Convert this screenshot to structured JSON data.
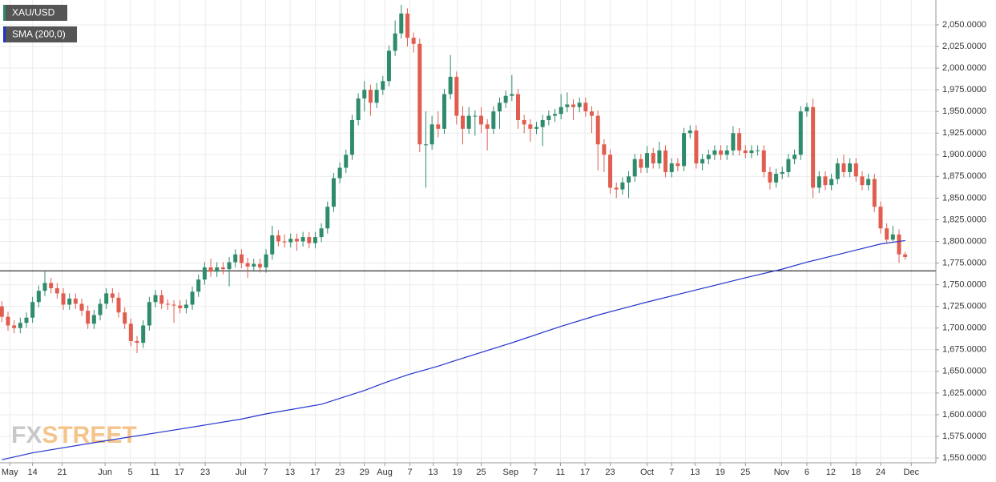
{
  "chart_data": {
    "type": "candlestick",
    "xlim": [
      -0.3,
      152
    ],
    "ylim": [
      1544.5,
      2078.6
    ],
    "grid": true,
    "logo": [
      "FX",
      "STREET"
    ],
    "hline": {
      "value": 1766,
      "color": "#000000"
    },
    "xticks": [
      {
        "value": 1.3,
        "label": "May"
      },
      {
        "value": 5,
        "label": "14"
      },
      {
        "value": 9.8,
        "label": "21"
      },
      {
        "value": 16.8,
        "label": "Jun"
      },
      {
        "value": 20.9,
        "label": "5"
      },
      {
        "value": 24.9,
        "label": "11"
      },
      {
        "value": 28.9,
        "label": "17"
      },
      {
        "value": 33.1,
        "label": "23"
      },
      {
        "value": 38.9,
        "label": "Jul"
      },
      {
        "value": 42.9,
        "label": "7"
      },
      {
        "value": 46.9,
        "label": "13"
      },
      {
        "value": 51,
        "label": "17"
      },
      {
        "value": 55,
        "label": "23"
      },
      {
        "value": 59,
        "label": "29"
      },
      {
        "value": 62.3,
        "label": "Aug"
      },
      {
        "value": 66.4,
        "label": "7"
      },
      {
        "value": 70.2,
        "label": "13"
      },
      {
        "value": 74.1,
        "label": "19"
      },
      {
        "value": 78,
        "label": "25"
      },
      {
        "value": 82.8,
        "label": "Sep"
      },
      {
        "value": 86.8,
        "label": "7"
      },
      {
        "value": 90.9,
        "label": "11"
      },
      {
        "value": 94.9,
        "label": "17"
      },
      {
        "value": 99,
        "label": "23"
      },
      {
        "value": 105,
        "label": "Oct"
      },
      {
        "value": 109,
        "label": "7"
      },
      {
        "value": 112.8,
        "label": "13"
      },
      {
        "value": 116.9,
        "label": "19"
      },
      {
        "value": 121,
        "label": "25"
      },
      {
        "value": 126.9,
        "label": "Nov"
      },
      {
        "value": 131,
        "label": "6"
      },
      {
        "value": 134.9,
        "label": "12"
      },
      {
        "value": 139,
        "label": "18"
      },
      {
        "value": 143,
        "label": "24"
      },
      {
        "value": 148,
        "label": "Dec"
      }
    ],
    "yticks": [
      {
        "value": 1550,
        "label": "1,550.0000"
      },
      {
        "value": 1575,
        "label": "1,575.0000"
      },
      {
        "value": 1600,
        "label": "1,600.0000"
      },
      {
        "value": 1625,
        "label": "1,625.0000"
      },
      {
        "value": 1650,
        "label": "1,650.0000"
      },
      {
        "value": 1675,
        "label": "1,675.0000"
      },
      {
        "value": 1700,
        "label": "1,700.0000"
      },
      {
        "value": 1725,
        "label": "1,725.0000"
      },
      {
        "value": 1750,
        "label": "1,750.0000"
      },
      {
        "value": 1775,
        "label": "1,775.0000"
      },
      {
        "value": 1800,
        "label": "1,800.0000"
      },
      {
        "value": 1825,
        "label": "1,825.0000"
      },
      {
        "value": 1850,
        "label": "1,850.0000"
      },
      {
        "value": 1875,
        "label": "1,875.0000"
      },
      {
        "value": 1900,
        "label": "1,900.0000"
      },
      {
        "value": 1925,
        "label": "1,925.0000"
      },
      {
        "value": 1950,
        "label": "1,950.0000"
      },
      {
        "value": 1975,
        "label": "1,975.0000"
      },
      {
        "value": 2000,
        "label": "2,000.0000"
      },
      {
        "value": 2025,
        "label": "2,025.0000"
      },
      {
        "value": 2050,
        "label": "2,050.0000"
      }
    ],
    "series": [
      {
        "name": "XAU/USD",
        "color": "#2e8b6b",
        "up_color": "#2e8b6b",
        "down_color": "#e05d4f",
        "x": [
          0,
          1,
          2,
          3,
          4,
          5,
          6,
          7,
          8,
          9,
          10,
          11,
          12,
          13,
          14,
          15,
          16,
          17,
          18,
          19,
          20,
          21,
          22,
          23,
          24,
          25,
          26,
          27,
          28,
          29,
          30,
          31,
          32,
          33,
          34,
          35,
          36,
          37,
          38,
          39,
          40,
          41,
          42,
          43,
          44,
          45,
          46,
          47,
          48,
          49,
          50,
          51,
          52,
          53,
          54,
          55,
          56,
          57,
          58,
          59,
          60,
          61,
          62,
          63,
          64,
          65,
          66,
          67,
          68,
          69,
          70,
          71,
          72,
          73,
          74,
          75,
          76,
          77,
          78,
          79,
          80,
          81,
          82,
          83,
          84,
          85,
          86,
          87,
          88,
          89,
          90,
          91,
          92,
          93,
          94,
          95,
          96,
          97,
          98,
          99,
          100,
          101,
          102,
          103,
          104,
          105,
          106,
          107,
          108,
          109,
          110,
          111,
          112,
          113,
          114,
          115,
          116,
          117,
          118,
          119,
          120,
          121,
          122,
          123,
          124,
          125,
          126,
          127,
          128,
          129,
          130,
          131,
          132,
          133,
          134,
          135,
          136,
          137,
          138,
          139,
          140,
          141,
          142,
          143,
          144,
          145,
          146,
          147
        ],
        "open": [
          1725,
          1713,
          1703,
          1700,
          1706,
          1712,
          1730,
          1743,
          1752,
          1746,
          1740,
          1727,
          1734,
          1728,
          1720,
          1705,
          1715,
          1728,
          1740,
          1735,
          1718,
          1705,
          1685,
          1683,
          1703,
          1730,
          1738,
          1728,
          1727,
          1726,
          1723,
          1727,
          1742,
          1756,
          1770,
          1765,
          1770,
          1768,
          1776,
          1785,
          1775,
          1771,
          1774,
          1770,
          1785,
          1807,
          1800,
          1799,
          1803,
          1800,
          1805,
          1798,
          1805,
          1815,
          1840,
          1873,
          1885,
          1900,
          1940,
          1965,
          1975,
          1960,
          1975,
          1985,
          2020,
          2040,
          2063,
          2035,
          2028,
          1912,
          1912,
          1935,
          1930,
          1970,
          1990,
          1945,
          1930,
          1945,
          1945,
          1935,
          1930,
          1950,
          1960,
          1968,
          1970,
          1940,
          1935,
          1930,
          1932,
          1940,
          1945,
          1947,
          1955,
          1958,
          1955,
          1960,
          1950,
          1945,
          1912,
          1900,
          1862,
          1860,
          1868,
          1875,
          1895,
          1885,
          1902,
          1890,
          1905,
          1880,
          1890,
          1887,
          1925,
          1928,
          1890,
          1895,
          1900,
          1905,
          1900,
          1905,
          1925,
          1905,
          1902,
          1905,
          1905,
          1880,
          1868,
          1878,
          1880,
          1895,
          1900,
          1950,
          1955,
          1862,
          1875,
          1865,
          1872,
          1890,
          1880,
          1890,
          1875,
          1865,
          1872,
          1840,
          1815,
          1802,
          1808,
          1785
        ],
        "high": [
          1731,
          1719,
          1709,
          1712,
          1718,
          1736,
          1749,
          1765,
          1758,
          1752,
          1746,
          1740,
          1740,
          1734,
          1726,
          1721,
          1734,
          1746,
          1746,
          1741,
          1724,
          1711,
          1691,
          1709,
          1736,
          1744,
          1744,
          1733,
          1732,
          1732,
          1733,
          1748,
          1762,
          1776,
          1780,
          1776,
          1776,
          1782,
          1791,
          1791,
          1781,
          1780,
          1780,
          1791,
          1818,
          1813,
          1808,
          1809,
          1809,
          1811,
          1811,
          1811,
          1821,
          1846,
          1879,
          1891,
          1906,
          1946,
          1971,
          1985,
          1981,
          1983,
          1991,
          2026,
          2055,
          2073,
          2069,
          2041,
          2034,
          1950,
          1945,
          1950,
          1976,
          2015,
          1996,
          1956,
          1955,
          1951,
          1955,
          1941,
          1956,
          1966,
          1974,
          1992,
          1976,
          1946,
          1941,
          1938,
          1946,
          1951,
          1953,
          1970,
          1972,
          1964,
          1966,
          1966,
          1956,
          1951,
          1918,
          1906,
          1868,
          1874,
          1881,
          1901,
          1901,
          1910,
          1908,
          1915,
          1911,
          1896,
          1896,
          1931,
          1934,
          1934,
          1901,
          1906,
          1911,
          1911,
          1911,
          1933,
          1931,
          1911,
          1911,
          1911,
          1911,
          1886,
          1884,
          1886,
          1901,
          1906,
          1956,
          1960,
          1965,
          1881,
          1881,
          1878,
          1896,
          1900,
          1896,
          1896,
          1881,
          1878,
          1878,
          1846,
          1821,
          1818,
          1814,
          1788
        ],
        "low": [
          1707,
          1697,
          1694,
          1694,
          1700,
          1706,
          1724,
          1737,
          1740,
          1734,
          1721,
          1721,
          1722,
          1714,
          1699,
          1699,
          1709,
          1722,
          1729,
          1712,
          1699,
          1679,
          1671,
          1677,
          1697,
          1724,
          1722,
          1721,
          1706,
          1717,
          1717,
          1721,
          1736,
          1750,
          1759,
          1759,
          1762,
          1748,
          1770,
          1769,
          1758,
          1765,
          1764,
          1764,
          1779,
          1794,
          1793,
          1793,
          1789,
          1794,
          1792,
          1792,
          1799,
          1809,
          1834,
          1867,
          1879,
          1894,
          1934,
          1950,
          1945,
          1954,
          1969,
          1979,
          2014,
          2034,
          2025,
          2018,
          1903,
          1862,
          1906,
          1920,
          1924,
          1964,
          1935,
          1912,
          1924,
          1922,
          1925,
          1905,
          1924,
          1930,
          1954,
          1962,
          1930,
          1925,
          1915,
          1924,
          1910,
          1934,
          1938,
          1941,
          1949,
          1940,
          1949,
          1944,
          1925,
          1882,
          1880,
          1855,
          1850,
          1854,
          1850,
          1869,
          1879,
          1879,
          1884,
          1884,
          1874,
          1874,
          1881,
          1881,
          1919,
          1884,
          1882,
          1889,
          1894,
          1894,
          1894,
          1899,
          1899,
          1896,
          1896,
          1899,
          1874,
          1860,
          1862,
          1872,
          1874,
          1889,
          1894,
          1944,
          1850,
          1856,
          1859,
          1859,
          1866,
          1874,
          1874,
          1869,
          1859,
          1859,
          1834,
          1809,
          1798,
          1800,
          1775,
          1779
        ],
        "close": [
          1713,
          1703,
          1700,
          1706,
          1712,
          1730,
          1743,
          1752,
          1746,
          1740,
          1727,
          1734,
          1728,
          1720,
          1705,
          1715,
          1728,
          1740,
          1735,
          1718,
          1705,
          1685,
          1683,
          1703,
          1730,
          1738,
          1728,
          1727,
          1726,
          1723,
          1727,
          1742,
          1756,
          1770,
          1765,
          1770,
          1768,
          1776,
          1785,
          1775,
          1771,
          1774,
          1770,
          1785,
          1807,
          1800,
          1799,
          1803,
          1800,
          1805,
          1798,
          1805,
          1815,
          1840,
          1873,
          1885,
          1900,
          1940,
          1965,
          1975,
          1960,
          1975,
          1985,
          2020,
          2040,
          2063,
          2035,
          2028,
          1912,
          1912,
          1935,
          1930,
          1970,
          1990,
          1945,
          1930,
          1945,
          1945,
          1935,
          1930,
          1950,
          1960,
          1968,
          1970,
          1940,
          1935,
          1930,
          1932,
          1940,
          1945,
          1947,
          1955,
          1958,
          1955,
          1960,
          1950,
          1945,
          1912,
          1900,
          1862,
          1860,
          1868,
          1875,
          1895,
          1885,
          1902,
          1890,
          1905,
          1880,
          1890,
          1887,
          1925,
          1928,
          1890,
          1895,
          1900,
          1905,
          1900,
          1905,
          1925,
          1905,
          1902,
          1905,
          1905,
          1880,
          1868,
          1878,
          1880,
          1895,
          1900,
          1950,
          1955,
          1862,
          1875,
          1865,
          1872,
          1890,
          1880,
          1890,
          1875,
          1865,
          1872,
          1840,
          1815,
          1802,
          1808,
          1785,
          1782
        ]
      },
      {
        "name": "SMA (200,0)",
        "type": "line",
        "color": "#2233cc",
        "x": [
          0,
          5,
          17,
          26,
          33,
          39,
          43,
          52,
          59,
          62,
          66,
          71,
          74,
          83,
          91,
          97,
          105,
          113,
          121,
          127,
          131,
          135,
          139,
          143,
          147
        ],
        "values": [
          1548,
          1556,
          1570,
          1580,
          1588,
          1595,
          1601,
          1612,
          1628,
          1636,
          1646,
          1656,
          1663,
          1683,
          1702,
          1715,
          1730,
          1744,
          1758,
          1768,
          1776,
          1783,
          1790,
          1797,
          1801
        ]
      }
    ]
  }
}
